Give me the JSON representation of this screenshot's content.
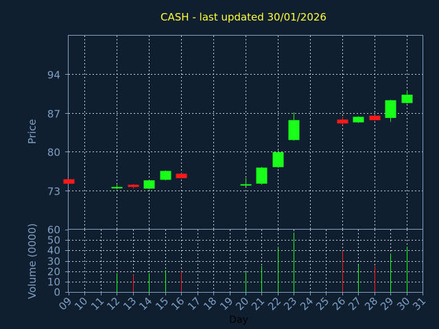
{
  "chart_data": {
    "type": "candlestick",
    "title": "CASH - last updated 30/01/2026",
    "xlabel": "Day",
    "price_panel": {
      "ylabel": "Price",
      "ylim": [
        66,
        101
      ],
      "yticks": [
        73,
        80,
        87,
        94
      ],
      "grid": true
    },
    "volume_panel": {
      "ylabel": "Volume (0000)",
      "ylim": [
        0,
        60
      ],
      "yticks": [
        0,
        10,
        20,
        30,
        40,
        50,
        60
      ],
      "grid": true
    },
    "x_ticks": [
      "09",
      "10",
      "11",
      "12",
      "13",
      "14",
      "15",
      "16",
      "17",
      "18",
      "19",
      "20",
      "21",
      "22",
      "23",
      "24",
      "25",
      "26",
      "27",
      "28",
      "29",
      "30",
      "31"
    ],
    "candles": [
      {
        "day": 9,
        "open": 75.0,
        "close": 74.2,
        "high": 75.0,
        "low": 74.2,
        "volume": 0
      },
      {
        "day": 12,
        "open": 73.4,
        "close": 73.6,
        "high": 74.0,
        "low": 73.2,
        "volume": 18
      },
      {
        "day": 13,
        "open": 74.0,
        "close": 73.6,
        "high": 74.1,
        "low": 73.3,
        "volume": 17
      },
      {
        "day": 14,
        "open": 73.3,
        "close": 74.8,
        "high": 74.9,
        "low": 73.2,
        "volume": 18
      },
      {
        "day": 15,
        "open": 74.9,
        "close": 76.5,
        "high": 76.6,
        "low": 74.8,
        "volume": 21
      },
      {
        "day": 16,
        "open": 76.0,
        "close": 75.2,
        "high": 76.1,
        "low": 75.1,
        "volume": 20
      },
      {
        "day": 20,
        "open": 74.0,
        "close": 74.1,
        "high": 75.2,
        "low": 73.7,
        "volume": 19
      },
      {
        "day": 21,
        "open": 74.2,
        "close": 77.1,
        "high": 77.2,
        "low": 74.0,
        "volume": 25
      },
      {
        "day": 22,
        "open": 77.2,
        "close": 79.9,
        "high": 80.2,
        "low": 77.1,
        "volume": 43
      },
      {
        "day": 23,
        "open": 82.1,
        "close": 85.7,
        "high": 87.1,
        "low": 82.0,
        "volume": 57
      },
      {
        "day": 26,
        "open": 85.8,
        "close": 85.1,
        "high": 86.3,
        "low": 84.8,
        "volume": 40
      },
      {
        "day": 27,
        "open": 85.3,
        "close": 86.3,
        "high": 86.4,
        "low": 85.2,
        "volume": 26
      },
      {
        "day": 28,
        "open": 86.5,
        "close": 85.7,
        "high": 86.6,
        "low": 85.6,
        "volume": 25
      },
      {
        "day": 29,
        "open": 86.1,
        "close": 89.3,
        "high": 89.4,
        "low": 85.4,
        "volume": 37
      },
      {
        "day": 30,
        "open": 88.8,
        "close": 90.3,
        "high": 91.0,
        "low": 88.7,
        "volume": 43
      }
    ],
    "colors": {
      "up": "#1aff1a",
      "down": "#ff1a1a",
      "up_volume": "#1aff1a",
      "down_volume": "#ff1a1a",
      "background": "#0f1f30",
      "frame": "#7f9fc0",
      "grid": "#c8d0d8",
      "title": "#ffff3a"
    }
  }
}
